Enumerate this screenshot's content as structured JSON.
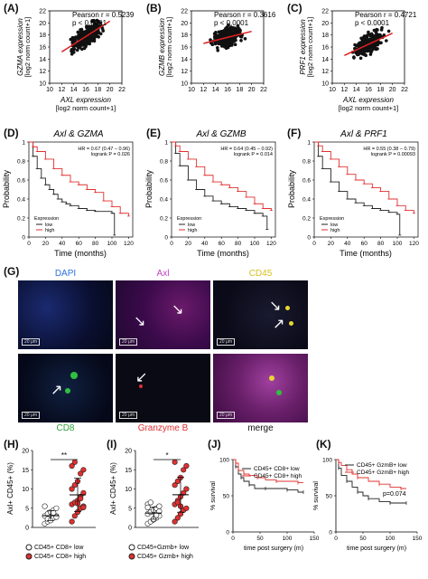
{
  "panels": {
    "A": {
      "label": "(A)",
      "pearson": "Pearson r = 0.5239",
      "p": "p < 0.0001",
      "ylabel": "GZMA expression",
      "ylabel2": "[log2 norm count+1]",
      "xlabel": "AXL expression",
      "xlabel2": "[log2 norm count+1]"
    },
    "B": {
      "label": "(B)",
      "pearson": "Pearson r = 0.3616",
      "p": "p < 0.0001",
      "ylabel": "GZMB expression",
      "ylabel2": "[log2 norm count+1]",
      "xlabel": "AXL expression",
      "xlabel2": "[log2 norm count+1]"
    },
    "C": {
      "label": "(C)",
      "pearson": "Pearson r = 0.4721",
      "p": "p < 0.0001",
      "ylabel": "PRF1 expression",
      "ylabel2": "[log2 norm count+1]",
      "xlabel": "AXL expression",
      "xlabel2": "[log2 norm count+1]"
    },
    "D": {
      "label": "(D)",
      "title": "Axl & GZMA",
      "hr": "HR = 0.67 (0.47 – 0.96)",
      "logrank": "logrank P = 0.026",
      "ylabel": "Probability",
      "xlabel": "Time (months)",
      "legend_title": "Expression",
      "low": "low",
      "high": "high"
    },
    "E": {
      "label": "(E)",
      "title": "Axl & GZMB",
      "hr": "HR = 0.64 (0.45 – 0.92)",
      "logrank": "logrank P = 0.014",
      "ylabel": "Probability",
      "xlabel": "Time (months)",
      "legend_title": "Expression",
      "low": "low",
      "high": "high"
    },
    "F": {
      "label": "(F)",
      "title": "Axl & PRF1",
      "hr": "HR = 0.55 (0.38 – 0.79)",
      "logrank": "logrank P = 0.00093",
      "ylabel": "Probability",
      "xlabel": "Time (months)",
      "legend_title": "Expression",
      "low": "low",
      "high": "high"
    },
    "G": {
      "label": "(G)",
      "dapi": "DAPI",
      "axl": "Axl",
      "cd45": "CD45",
      "cd8": "CD8",
      "granzyme": "Granzyme B",
      "merge": "merge",
      "scale": "20 μm"
    },
    "H": {
      "label": "(H)",
      "ylabel": "Axl+ CD45+ (%)",
      "sig": "**",
      "leg_low": "CD45+ CD8+ low",
      "leg_high": "CD45+ CD8+ high"
    },
    "I": {
      "label": "(I)",
      "ylabel": "Axl+ CD45+ (%)",
      "sig": "*",
      "leg_low": "CD45+Gzmb+ low",
      "leg_high": "CD45+ Gzmb+ high"
    },
    "J": {
      "label": "(J)",
      "ylabel": "% survival",
      "xlabel": "time post surgery (m)",
      "leg_low": "CD45+ CD8+ low",
      "leg_high": "CD45+ CD8+ high"
    },
    "K": {
      "label": "(K)",
      "ylabel": "% survival",
      "xlabel": "time post surgery (m)",
      "leg_low": "CD45+ GzmB+ low",
      "leg_high": "CD45+ GzmB+ high",
      "p": "p=0.074"
    }
  },
  "colors": {
    "low": "#222222",
    "high": "#e03030",
    "fit": "#e02020",
    "dapi": "#2a6fe0",
    "axl": "#c040c0",
    "cd45": "#d8c020",
    "cd8": "#30c040",
    "granzyme": "#e03030"
  },
  "chart_data": [
    {
      "type": "scatter",
      "panel": "A",
      "xlim": [
        10,
        22
      ],
      "ylim": [
        10,
        22
      ],
      "xticks": [
        10,
        12,
        14,
        16,
        18,
        20,
        22
      ],
      "yticks": [
        10,
        12,
        14,
        16,
        18,
        20,
        22
      ],
      "fit": [
        [
          12,
          15.2
        ],
        [
          20,
          20.3
        ]
      ]
    },
    {
      "type": "scatter",
      "panel": "B",
      "xlim": [
        10,
        22
      ],
      "ylim": [
        10,
        22
      ],
      "xticks": [
        10,
        12,
        14,
        16,
        18,
        20,
        22
      ],
      "yticks": [
        10,
        12,
        14,
        16,
        18,
        20,
        22
      ],
      "fit": [
        [
          12,
          16.6
        ],
        [
          20,
          18.6
        ]
      ]
    },
    {
      "type": "scatter",
      "panel": "C",
      "xlim": [
        10,
        22
      ],
      "ylim": [
        10,
        22
      ],
      "xticks": [
        10,
        12,
        14,
        16,
        18,
        20,
        22
      ],
      "yticks": [
        10,
        12,
        14,
        16,
        18,
        20,
        22
      ],
      "fit": [
        [
          12,
          14.6
        ],
        [
          20,
          18.3
        ]
      ]
    },
    {
      "type": "line",
      "panel": "D",
      "xlim": [
        0,
        125
      ],
      "ylim": [
        0,
        1
      ],
      "xticks": [
        0,
        20,
        40,
        60,
        80,
        100,
        120
      ],
      "yticks": [
        0,
        0.2,
        0.4,
        0.6,
        0.8,
        1
      ],
      "series": [
        {
          "name": "low",
          "x": [
            0,
            5,
            10,
            15,
            20,
            25,
            30,
            35,
            40,
            45,
            50,
            60,
            70,
            80,
            100,
            103
          ],
          "y": [
            1,
            0.85,
            0.72,
            0.62,
            0.55,
            0.5,
            0.45,
            0.4,
            0.37,
            0.35,
            0.33,
            0.3,
            0.28,
            0.27,
            0.25,
            0.02
          ]
        },
        {
          "name": "high",
          "x": [
            0,
            5,
            10,
            20,
            30,
            40,
            50,
            60,
            70,
            80,
            90,
            100,
            110,
            120
          ],
          "y": [
            1,
            0.95,
            0.9,
            0.82,
            0.72,
            0.65,
            0.58,
            0.55,
            0.5,
            0.47,
            0.38,
            0.32,
            0.25,
            0.22
          ]
        }
      ]
    },
    {
      "type": "line",
      "panel": "E",
      "xlim": [
        0,
        125
      ],
      "ylim": [
        0,
        1
      ],
      "xticks": [
        0,
        20,
        40,
        60,
        80,
        100,
        120
      ],
      "yticks": [
        0,
        0.2,
        0.4,
        0.6,
        0.8,
        1
      ],
      "series": [
        {
          "name": "low",
          "x": [
            0,
            5,
            10,
            20,
            30,
            40,
            50,
            60,
            70,
            80,
            90,
            100,
            110,
            115
          ],
          "y": [
            1,
            0.88,
            0.75,
            0.6,
            0.5,
            0.43,
            0.38,
            0.35,
            0.32,
            0.3,
            0.28,
            0.25,
            0.22,
            0.08
          ]
        },
        {
          "name": "high",
          "x": [
            0,
            5,
            10,
            20,
            30,
            40,
            50,
            60,
            70,
            80,
            90,
            100,
            110,
            120
          ],
          "y": [
            1,
            0.96,
            0.9,
            0.82,
            0.74,
            0.65,
            0.58,
            0.55,
            0.52,
            0.48,
            0.42,
            0.35,
            0.3,
            0.28
          ]
        }
      ]
    },
    {
      "type": "line",
      "panel": "F",
      "xlim": [
        0,
        125
      ],
      "ylim": [
        0,
        1
      ],
      "xticks": [
        0,
        20,
        40,
        60,
        80,
        100,
        120
      ],
      "yticks": [
        0,
        0.2,
        0.4,
        0.6,
        0.8,
        1
      ],
      "series": [
        {
          "name": "low",
          "x": [
            0,
            5,
            10,
            20,
            30,
            40,
            50,
            60,
            70,
            80,
            90,
            100,
            103
          ],
          "y": [
            1,
            0.85,
            0.72,
            0.58,
            0.48,
            0.4,
            0.36,
            0.33,
            0.3,
            0.28,
            0.26,
            0.24,
            0.02
          ]
        },
        {
          "name": "high",
          "x": [
            0,
            5,
            10,
            20,
            30,
            40,
            50,
            60,
            70,
            80,
            90,
            100,
            110,
            120
          ],
          "y": [
            1,
            0.96,
            0.9,
            0.82,
            0.74,
            0.66,
            0.6,
            0.56,
            0.52,
            0.48,
            0.4,
            0.33,
            0.28,
            0.25
          ]
        }
      ]
    },
    {
      "type": "scatter",
      "panel": "H",
      "ylim": [
        0,
        20
      ],
      "yticks": [
        0,
        5,
        10,
        15,
        20
      ],
      "groups": [
        {
          "name": "CD45+ CD8+ low",
          "values": [
            1,
            1.5,
            2,
            2.5,
            3,
            3,
            3.5,
            4,
            4.5,
            5,
            5.5,
            2.2,
            1.8,
            3.8,
            2.7
          ]
        },
        {
          "name": "CD45+ CD8+ high",
          "values": [
            1.5,
            3,
            4,
            5,
            5.5,
            6,
            6.5,
            7,
            8,
            9,
            10,
            11,
            12,
            14,
            15,
            16,
            17,
            6.2,
            7.5,
            5.2
          ]
        }
      ]
    },
    {
      "type": "scatter",
      "panel": "I",
      "ylim": [
        0,
        20
      ],
      "yticks": [
        0,
        5,
        10,
        15,
        20
      ],
      "groups": [
        {
          "name": "CD45+Gzmb+ low",
          "values": [
            1,
            1.5,
            2,
            2.5,
            3,
            3.5,
            4,
            4.5,
            5,
            5.5,
            6,
            6.5,
            2.2,
            3.2,
            4.2,
            5.2
          ]
        },
        {
          "name": "CD45+ Gzmb+ high",
          "values": [
            1.5,
            2.5,
            3.5,
            4.5,
            5,
            6,
            7,
            8,
            9,
            10,
            11,
            12,
            13,
            15,
            16,
            17,
            6.5,
            5.5
          ]
        }
      ]
    },
    {
      "type": "line",
      "panel": "J",
      "xlim": [
        0,
        150
      ],
      "ylim": [
        0,
        100
      ],
      "xticks": [
        0,
        50,
        100,
        150
      ],
      "yticks": [
        0,
        50,
        100
      ],
      "series": [
        {
          "name": "CD45+ CD8+ low",
          "x": [
            0,
            5,
            10,
            15,
            20,
            30,
            40,
            60,
            80,
            100,
            120,
            130
          ],
          "y": [
            100,
            90,
            80,
            75,
            70,
            65,
            60,
            60,
            60,
            58,
            55,
            55
          ]
        },
        {
          "name": "CD45+ CD8+ high",
          "x": [
            0,
            5,
            10,
            20,
            30,
            45,
            60,
            80,
            100,
            120,
            130
          ],
          "y": [
            100,
            95,
            85,
            80,
            78,
            75,
            72,
            70,
            70,
            68,
            68
          ]
        }
      ]
    },
    {
      "type": "line",
      "panel": "K",
      "xlim": [
        0,
        150
      ],
      "ylim": [
        0,
        100
      ],
      "xticks": [
        0,
        50,
        100,
        150
      ],
      "yticks": [
        0,
        50,
        100
      ],
      "series": [
        {
          "name": "CD45+ GzmB+ low",
          "x": [
            0,
            5,
            10,
            20,
            30,
            40,
            50,
            60,
            80,
            100,
            120,
            130
          ],
          "y": [
            100,
            88,
            78,
            70,
            62,
            55,
            50,
            46,
            42,
            40,
            40,
            40
          ]
        },
        {
          "name": "CD45+ GzmB+ high",
          "x": [
            0,
            5,
            10,
            20,
            30,
            40,
            60,
            80,
            100,
            120,
            130
          ],
          "y": [
            100,
            96,
            92,
            86,
            80,
            75,
            70,
            66,
            62,
            60,
            60
          ]
        }
      ]
    }
  ]
}
